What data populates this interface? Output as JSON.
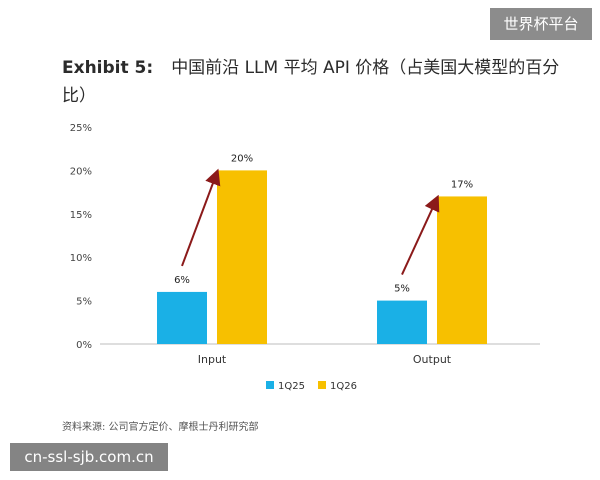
{
  "watermark_top": "世界杯平台",
  "watermark_bottom": "cn-ssl-sjb.com.cn",
  "exhibit_label": "Exhibit 5:",
  "title_text": "中国前沿 LLM 平均 API 价格（占美国大模型的百分比）",
  "source_note": "资料来源: 公司官方定价、摩根士丹利研究部",
  "colors": {
    "1Q25": "#1ab0e6",
    "1Q26": "#f7c000",
    "arrow": "#8b1a1a"
  },
  "chart_data": {
    "type": "bar",
    "categories": [
      "Input",
      "Output"
    ],
    "series": [
      {
        "name": "1Q25",
        "values": [
          6,
          5
        ]
      },
      {
        "name": "1Q26",
        "values": [
          20,
          17
        ]
      }
    ],
    "data_labels": [
      [
        "6%",
        "20%"
      ],
      [
        "5%",
        "17%"
      ]
    ],
    "ylim": [
      0,
      25
    ],
    "yticks": [
      0,
      5,
      10,
      15,
      20,
      25
    ],
    "ytick_labels": [
      "0%",
      "5%",
      "10%",
      "15%",
      "20%",
      "25%"
    ],
    "legend": [
      "1Q25",
      "1Q26"
    ],
    "legend_position": "bottom",
    "grid": false
  }
}
